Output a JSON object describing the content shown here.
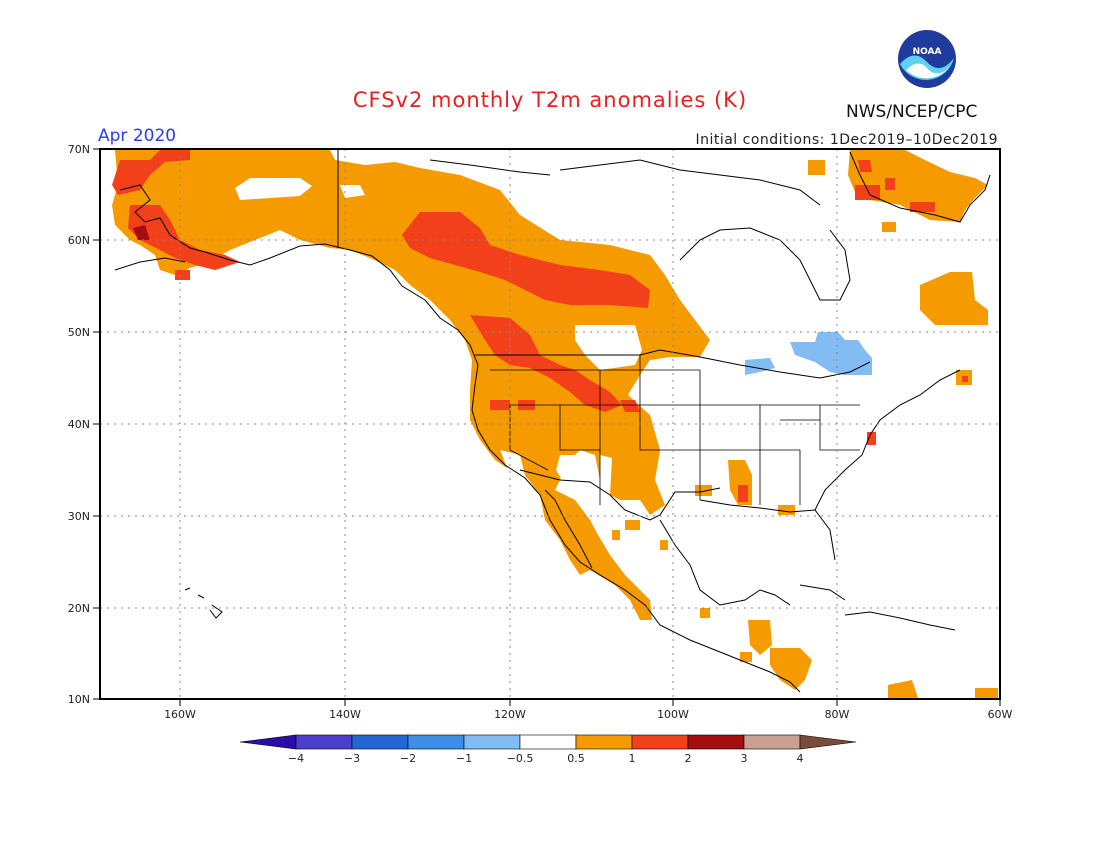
{
  "header": {
    "title": "CFSv2 monthly T2m anomalies (K)",
    "agency": "NWS/NCEP/CPC",
    "logo_text": "NOAA",
    "period": "Apr 2020",
    "initial_conditions": "Initial conditions: 1Dec2019–10Dec2019"
  },
  "map_data": {
    "projection": "equirectangular",
    "lon_range": [
      -172,
      -60
    ],
    "lat_range": [
      10,
      70
    ],
    "lat_labels": [
      "10N",
      "20N",
      "30N",
      "40N",
      "50N",
      "60N",
      "70N"
    ],
    "lon_labels": [
      "160W",
      "140W",
      "120W",
      "100W",
      "80W",
      "60W"
    ]
  },
  "legend": {
    "tick_labels": [
      "−4",
      "−3",
      "−2",
      "−1",
      "−0.5",
      "0.5",
      "1",
      "2",
      "3",
      "4"
    ],
    "colors": [
      "#2a0ea8",
      "#4a3fd1",
      "#2466d6",
      "#3d8ee8",
      "#82bcf2",
      "#ffffff",
      "#f59b00",
      "#f2401a",
      "#a40e0e",
      "#c9a091",
      "#7a4b3a"
    ]
  },
  "anomaly_colors": {
    "cool": "#82bcf2",
    "warm": "#f59b00",
    "hot": "#f2401a",
    "very_hot": "#a40e0e"
  }
}
